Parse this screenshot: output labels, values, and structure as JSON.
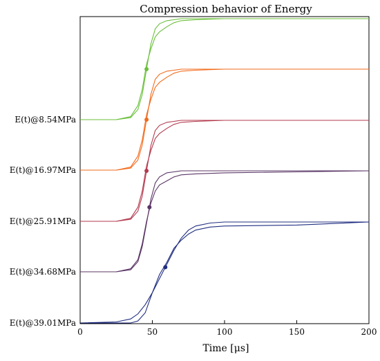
{
  "chart_data": {
    "type": "line",
    "title": "Compression behavior of Energy",
    "xlabel": "Time [μs]",
    "xlim": [
      0,
      200
    ],
    "xticks": [
      0,
      50,
      100,
      150,
      200
    ],
    "grid": false,
    "series": [
      {
        "label": "E(t)@8.54MPa",
        "color": "#6abf3a",
        "marker_x": 46,
        "curve_a": {
          "x": [
            0,
            25,
            35,
            40,
            43,
            46,
            49,
            52,
            55,
            60,
            65,
            70,
            80,
            100,
            150,
            200
          ],
          "y": [
            0,
            0,
            0.02,
            0.1,
            0.25,
            0.5,
            0.75,
            0.9,
            0.95,
            0.98,
            0.99,
            1,
            1,
            1,
            1,
            1
          ]
        },
        "curve_b": {
          "x": [
            0,
            25,
            35,
            40,
            43,
            46,
            49,
            52,
            55,
            60,
            65,
            70,
            80,
            100,
            150,
            200
          ],
          "y": [
            0,
            0,
            0.03,
            0.14,
            0.3,
            0.55,
            0.7,
            0.82,
            0.87,
            0.92,
            0.96,
            0.98,
            0.99,
            1,
            1,
            1
          ]
        }
      },
      {
        "label": "E(t)@16.97MPa",
        "color": "#f26a1b",
        "marker_x": 46,
        "curve_a": {
          "x": [
            0,
            25,
            35,
            40,
            43,
            46,
            49,
            52,
            55,
            60,
            65,
            70,
            80,
            100,
            150,
            200
          ],
          "y": [
            0,
            0,
            0.02,
            0.1,
            0.25,
            0.5,
            0.75,
            0.9,
            0.95,
            0.98,
            0.99,
            1,
            1,
            1,
            1,
            1
          ]
        },
        "curve_b": {
          "x": [
            0,
            25,
            35,
            40,
            43,
            46,
            49,
            52,
            55,
            60,
            65,
            70,
            80,
            100,
            150,
            200
          ],
          "y": [
            0,
            0,
            0.03,
            0.14,
            0.3,
            0.55,
            0.7,
            0.82,
            0.87,
            0.92,
            0.96,
            0.98,
            0.99,
            1,
            1,
            1
          ]
        }
      },
      {
        "label": "E(t)@25.91MPa",
        "color": "#b33a4e",
        "marker_x": 46,
        "curve_a": {
          "x": [
            0,
            25,
            35,
            40,
            43,
            46,
            49,
            52,
            55,
            60,
            65,
            70,
            80,
            100,
            150,
            200
          ],
          "y": [
            0,
            0,
            0.02,
            0.1,
            0.25,
            0.5,
            0.75,
            0.9,
            0.95,
            0.98,
            0.99,
            1,
            1,
            1,
            1,
            1
          ]
        },
        "curve_b": {
          "x": [
            0,
            25,
            35,
            40,
            43,
            46,
            49,
            52,
            55,
            60,
            65,
            70,
            80,
            100,
            150,
            200
          ],
          "y": [
            0,
            0,
            0.03,
            0.14,
            0.3,
            0.55,
            0.7,
            0.82,
            0.87,
            0.92,
            0.96,
            0.98,
            0.99,
            1,
            1,
            1
          ]
        }
      },
      {
        "label": "E(t)@34.68MPa",
        "color": "#5a3566",
        "marker_x": 48,
        "curve_a": {
          "x": [
            0,
            25,
            35,
            40,
            43,
            46,
            49,
            52,
            55,
            60,
            65,
            70,
            80,
            100,
            150,
            200
          ],
          "y": [
            0,
            0,
            0.02,
            0.1,
            0.25,
            0.48,
            0.72,
            0.88,
            0.94,
            0.98,
            0.99,
            1,
            1,
            1,
            1,
            1
          ]
        },
        "curve_b": {
          "x": [
            0,
            25,
            35,
            40,
            43,
            46,
            49,
            52,
            55,
            60,
            65,
            70,
            80,
            100,
            150,
            200
          ],
          "y": [
            0,
            0,
            0.03,
            0.12,
            0.28,
            0.5,
            0.68,
            0.8,
            0.86,
            0.9,
            0.94,
            0.96,
            0.97,
            0.98,
            0.99,
            1
          ]
        }
      },
      {
        "label": "E(t)@39.01MPa",
        "color": "#1f2d80",
        "marker_x": 59,
        "curve_a": {
          "x": [
            0,
            25,
            35,
            40,
            45,
            50,
            55,
            60,
            65,
            70,
            75,
            80,
            90,
            100,
            150,
            200
          ],
          "y": [
            0,
            0.01,
            0.04,
            0.09,
            0.18,
            0.3,
            0.44,
            0.58,
            0.72,
            0.84,
            0.92,
            0.96,
            0.99,
            1,
            1,
            1
          ]
        },
        "curve_b": {
          "x": [
            0,
            25,
            35,
            40,
            45,
            50,
            55,
            60,
            65,
            70,
            75,
            80,
            90,
            100,
            150,
            200
          ],
          "y": [
            0,
            0,
            0,
            0.02,
            0.1,
            0.3,
            0.48,
            0.6,
            0.74,
            0.82,
            0.88,
            0.92,
            0.95,
            0.96,
            0.97,
            1
          ]
        }
      }
    ]
  }
}
